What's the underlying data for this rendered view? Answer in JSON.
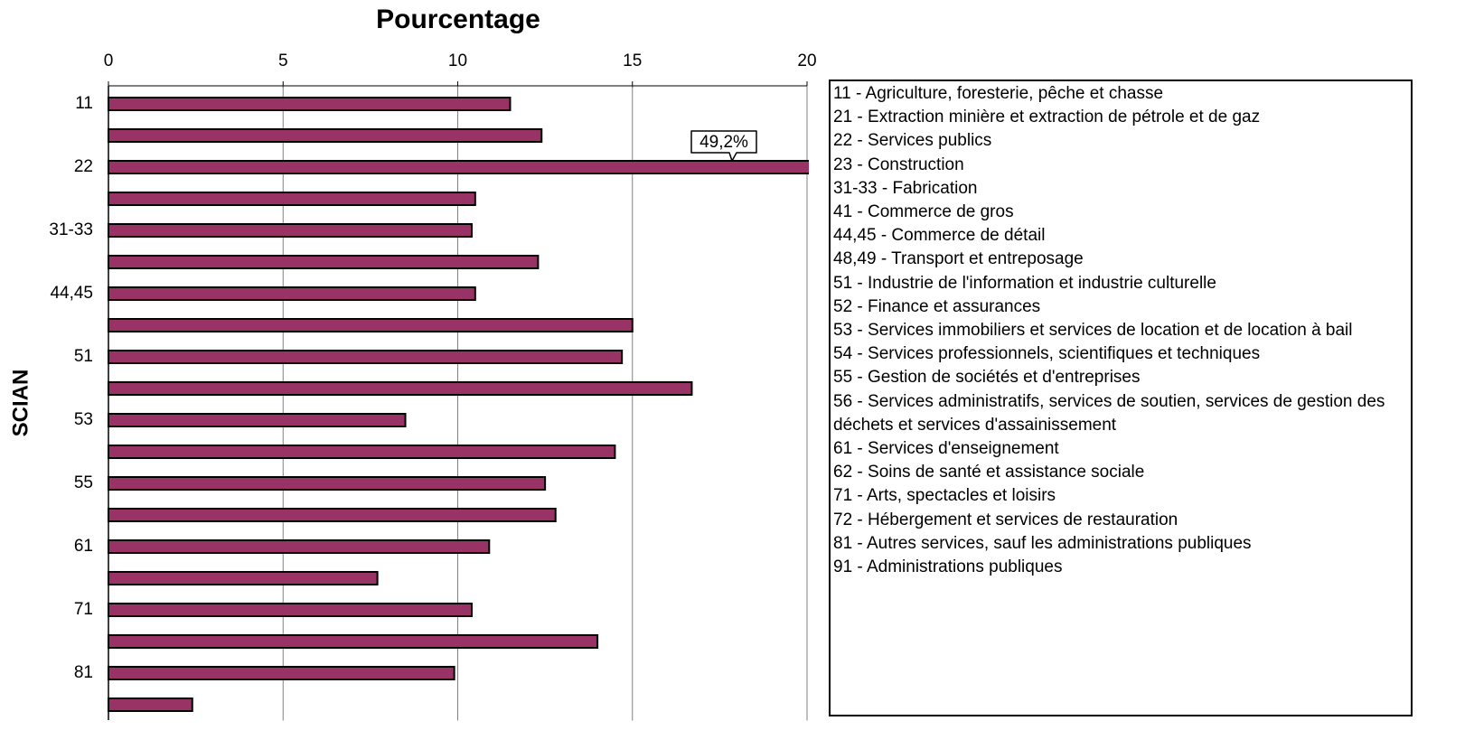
{
  "chart_data": {
    "type": "bar",
    "orientation": "horizontal",
    "title": "Pourcentage",
    "y_axis_label": "SCIAN",
    "categories": [
      "11",
      null,
      "22",
      null,
      "31-33",
      null,
      "44,45",
      null,
      "51",
      null,
      "53",
      null,
      "55",
      null,
      "61",
      null,
      "71",
      null,
      "81",
      null
    ],
    "values": [
      11.5,
      12.4,
      49.2,
      10.5,
      10.4,
      12.3,
      10.5,
      15.0,
      14.7,
      16.7,
      8.5,
      14.5,
      12.5,
      12.8,
      10.9,
      7.7,
      10.4,
      14.0,
      9.9,
      2.4
    ],
    "value_labels": [
      null,
      null,
      "49,2%",
      null,
      null,
      null,
      null,
      null,
      null,
      null,
      null,
      null,
      null,
      null,
      null,
      null,
      null,
      null,
      null,
      null
    ],
    "color": "#993366",
    "xlim": [
      0,
      20
    ],
    "xticks": [
      0,
      5,
      10,
      15,
      20
    ],
    "grid": true,
    "legend": [
      "11 - Agriculture, foresterie, pêche et chasse",
      "21 - Extraction minière et extraction de pétrole et de gaz",
      "22 - Services publics",
      "23 - Construction",
      "31-33 - Fabrication",
      "41 - Commerce de gros",
      "44,45 - Commerce de détail",
      "48,49 - Transport et entreposage",
      "51 - Industrie de l'information et industrie culturelle",
      "52 - Finance et assurances",
      "53 - Services immobiliers et services de location et de location à bail",
      "54 - Services professionnels, scientifiques et techniques",
      "55 - Gestion de sociétés et d'entreprises",
      "56 - Services administratifs, services de soutien, services de gestion des déchets et services d'assainissement",
      "61 - Services d'enseignement",
      "62 - Soins de santé et assistance sociale",
      "71 - Arts, spectacles et loisirs",
      "72 - Hébergement et services de restauration",
      "81 - Autres services, sauf les administrations publiques",
      "91 - Administrations publiques"
    ]
  }
}
